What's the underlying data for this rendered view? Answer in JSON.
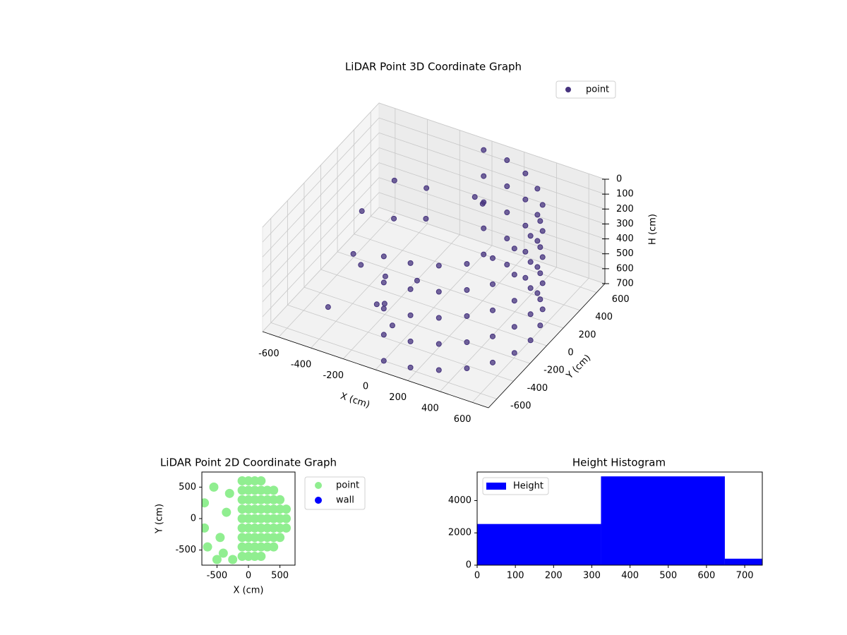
{
  "chart_data": [
    {
      "type": "scatter3d",
      "title": "LiDAR Point 3D Coordinate Graph",
      "x_label": "X (cm)",
      "y_label": "Y (cm)",
      "z_label": "H (cm)",
      "xlim": [
        -700,
        700
      ],
      "ylim": [
        -700,
        700
      ],
      "zlim": [
        0,
        700
      ],
      "invert_z": true,
      "xticks": [
        -600,
        -400,
        -200,
        0,
        200,
        400,
        600
      ],
      "yticks": [
        -600,
        -400,
        -200,
        0,
        200,
        400,
        600
      ],
      "zticks": [
        0,
        100,
        200,
        300,
        400,
        500,
        600,
        700
      ],
      "grid": true,
      "legend": "upper right",
      "series": [
        {
          "name": "point",
          "color": "#46337e",
          "x": [
            0,
            0,
            0,
            0,
            0,
            155,
            155,
            155,
            155,
            155,
            300,
            300,
            300,
            300,
            300,
            424,
            424,
            424,
            424,
            424,
            520,
            520,
            520,
            520,
            520,
            580,
            580,
            580,
            580,
            580,
            600,
            600,
            600,
            600,
            600,
            580,
            580,
            580,
            580,
            580,
            520,
            520,
            520,
            520,
            520,
            424,
            424,
            424,
            424,
            424,
            300,
            300,
            300,
            300,
            300,
            155,
            155,
            155,
            155,
            155,
            0,
            0,
            0,
            0,
            0,
            -600,
            -550,
            -450,
            -400,
            -350,
            -300,
            -250,
            -200,
            -150,
            -100,
            -50,
            100,
            200,
            0,
            -500
          ],
          "y": [
            -600,
            -600,
            -600,
            -600,
            -600,
            -580,
            -580,
            -580,
            -580,
            -580,
            -520,
            -520,
            -520,
            -520,
            -520,
            -424,
            -424,
            -424,
            -424,
            -424,
            -300,
            -300,
            -300,
            -300,
            -300,
            -155,
            -155,
            -155,
            -155,
            -155,
            0,
            0,
            0,
            0,
            0,
            155,
            155,
            155,
            155,
            155,
            300,
            300,
            300,
            300,
            300,
            424,
            424,
            424,
            424,
            424,
            520,
            520,
            520,
            520,
            520,
            580,
            580,
            580,
            580,
            580,
            600,
            600,
            600,
            600,
            600,
            300,
            100,
            400,
            -100,
            200,
            0,
            -200,
            300,
            -300,
            100,
            -400,
            300,
            200,
            -200,
            -300
          ],
          "z": [
            0,
            175,
            350,
            525,
            700,
            0,
            175,
            350,
            525,
            700,
            0,
            175,
            350,
            525,
            700,
            0,
            175,
            350,
            525,
            700,
            0,
            175,
            350,
            525,
            700,
            0,
            175,
            350,
            525,
            700,
            0,
            175,
            350,
            525,
            700,
            0,
            175,
            350,
            525,
            700,
            0,
            175,
            350,
            525,
            700,
            0,
            175,
            350,
            525,
            700,
            0,
            175,
            350,
            525,
            700,
            0,
            175,
            350,
            525,
            700,
            0,
            175,
            350,
            525,
            700,
            450,
            600,
            250,
            500,
            350,
            600,
            650,
            150,
            550,
            200,
            600,
            100,
            50,
            400,
            700
          ]
        }
      ]
    },
    {
      "type": "scatter",
      "title": "LiDAR Point 2D Coordinate Graph",
      "x_label": "X (cm)",
      "y_label": "Y (cm)",
      "xlim": [
        -740,
        740
      ],
      "ylim": [
        -740,
        740
      ],
      "xticks": [
        -500,
        0,
        500
      ],
      "yticks": [
        -500,
        0,
        500
      ],
      "legend": "outside right",
      "series": [
        {
          "name": "point",
          "color": "#90ee90",
          "x": [
            -100,
            -100,
            -100,
            -100,
            -100,
            -100,
            -100,
            -100,
            -100,
            0,
            0,
            0,
            0,
            0,
            0,
            0,
            0,
            0,
            100,
            100,
            100,
            100,
            100,
            100,
            100,
            100,
            100,
            200,
            200,
            200,
            200,
            200,
            200,
            200,
            200,
            200,
            300,
            300,
            300,
            300,
            300,
            300,
            300,
            400,
            400,
            400,
            400,
            400,
            400,
            400,
            500,
            500,
            500,
            500,
            500,
            600,
            600,
            600,
            -700,
            -700,
            -650,
            -550,
            -450,
            -400,
            -350,
            -300,
            -500,
            -250
          ],
          "y": [
            -600,
            -450,
            -300,
            -150,
            0,
            150,
            300,
            450,
            600,
            -600,
            -450,
            -300,
            -150,
            0,
            150,
            300,
            450,
            600,
            -600,
            -450,
            -300,
            -150,
            0,
            150,
            300,
            450,
            600,
            -600,
            -450,
            -300,
            -150,
            0,
            150,
            300,
            450,
            600,
            -450,
            -300,
            -150,
            0,
            150,
            300,
            450,
            -450,
            -300,
            -150,
            0,
            150,
            300,
            450,
            -300,
            -150,
            0,
            150,
            300,
            -150,
            0,
            150,
            250,
            -150,
            -450,
            500,
            -300,
            -550,
            100,
            400,
            -650,
            -650
          ]
        },
        {
          "name": "wall",
          "color": "#0000ff",
          "x": [],
          "y": []
        }
      ]
    },
    {
      "type": "histogram",
      "title": "Height Histogram",
      "bins": [
        0,
        324,
        648,
        746
      ],
      "series": [
        {
          "name": "Height",
          "color": "#0000ff",
          "values": [
            2550,
            5500,
            400
          ]
        }
      ],
      "xlim": [
        0,
        746
      ],
      "ylim": [
        0,
        5770
      ],
      "xticks": [
        0,
        100,
        200,
        300,
        400,
        500,
        600,
        700
      ],
      "yticks": [
        0,
        2000,
        4000
      ],
      "legend": "upper left"
    }
  ]
}
